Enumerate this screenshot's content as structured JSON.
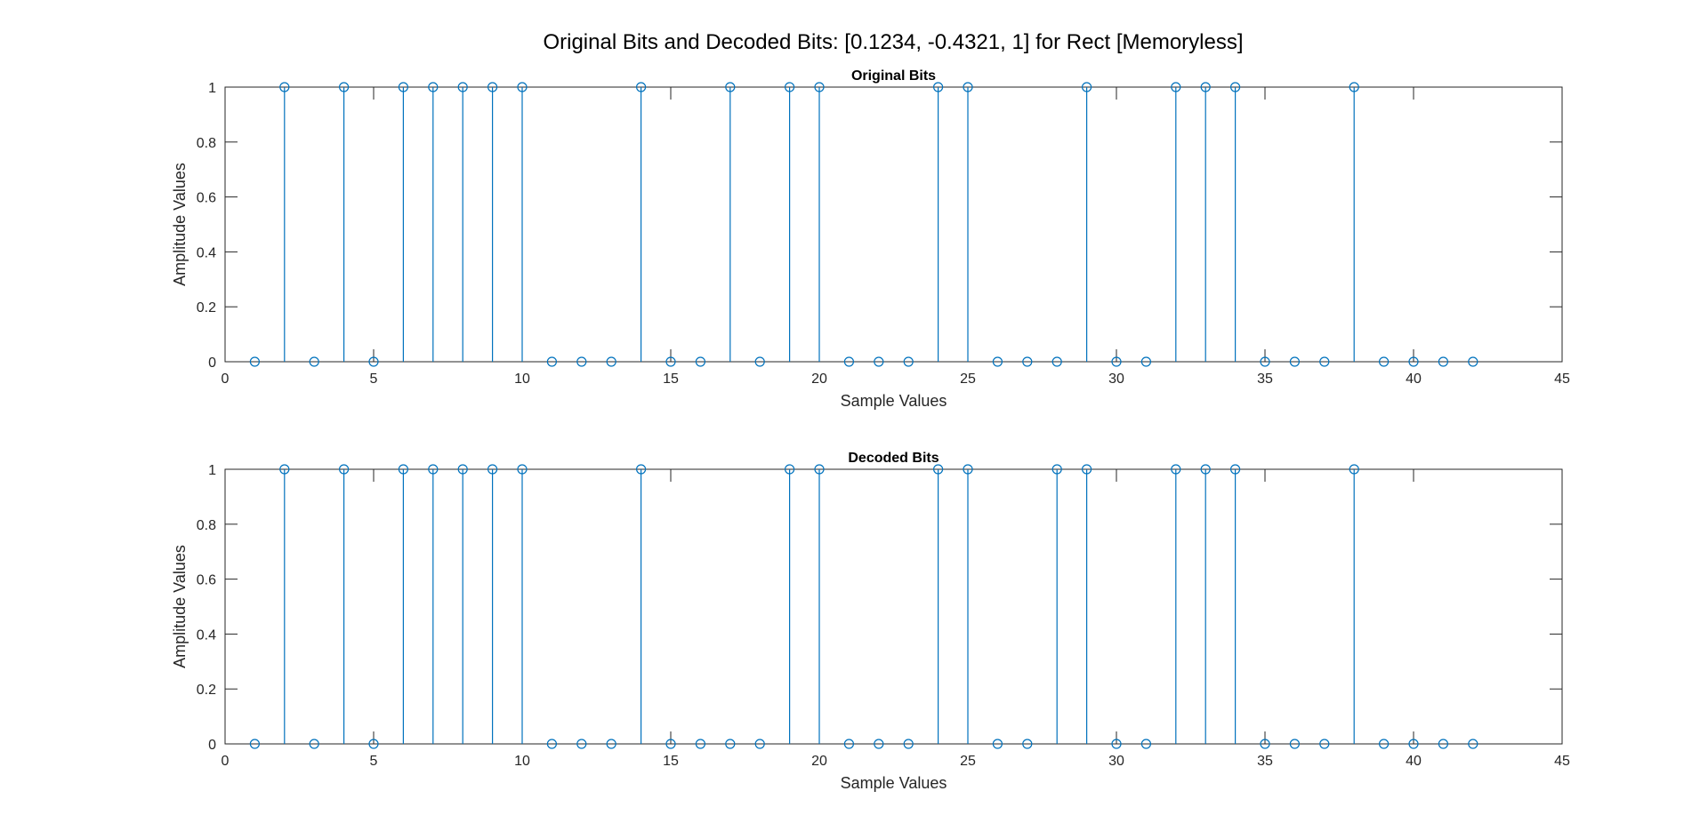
{
  "figure": {
    "title": "Original Bits and Decoded Bits: [0.1234, -0.4321, 1] for Rect [Memoryless]"
  },
  "chart_data": [
    {
      "type": "stem",
      "title": "Original Bits",
      "xlabel": "Sample Values",
      "ylabel": "Amplitude Values",
      "xlim": [
        0,
        45
      ],
      "ylim": [
        0,
        1
      ],
      "xticks": [
        "0",
        "5",
        "10",
        "15",
        "20",
        "25",
        "30",
        "35",
        "40",
        "45"
      ],
      "yticks": [
        "0",
        "0.2",
        "0.4",
        "0.6",
        "0.8",
        "1"
      ],
      "grid": false,
      "color": "#0072BD",
      "x": [
        1,
        2,
        3,
        4,
        5,
        6,
        7,
        8,
        9,
        10,
        11,
        12,
        13,
        14,
        15,
        16,
        17,
        18,
        19,
        20,
        21,
        22,
        23,
        24,
        25,
        26,
        27,
        28,
        29,
        30,
        31,
        32,
        33,
        34,
        35,
        36,
        37,
        38,
        39,
        40,
        41,
        42
      ],
      "values": [
        0,
        1,
        0,
        1,
        0,
        1,
        1,
        1,
        1,
        1,
        0,
        0,
        0,
        1,
        0,
        0,
        1,
        0,
        1,
        1,
        0,
        0,
        0,
        1,
        1,
        0,
        0,
        0,
        1,
        0,
        0,
        1,
        1,
        1,
        0,
        0,
        0,
        1,
        0,
        0,
        0,
        0
      ]
    },
    {
      "type": "stem",
      "title": "Decoded Bits",
      "xlabel": "Sample Values",
      "ylabel": "Amplitude Values",
      "xlim": [
        0,
        45
      ],
      "ylim": [
        0,
        1
      ],
      "xticks": [
        "0",
        "5",
        "10",
        "15",
        "20",
        "25",
        "30",
        "35",
        "40",
        "45"
      ],
      "yticks": [
        "0",
        "0.2",
        "0.4",
        "0.6",
        "0.8",
        "1"
      ],
      "grid": false,
      "color": "#0072BD",
      "x": [
        1,
        2,
        3,
        4,
        5,
        6,
        7,
        8,
        9,
        10,
        11,
        12,
        13,
        14,
        15,
        16,
        17,
        18,
        19,
        20,
        21,
        22,
        23,
        24,
        25,
        26,
        27,
        28,
        29,
        30,
        31,
        32,
        33,
        34,
        35,
        36,
        37,
        38,
        39,
        40,
        41,
        42
      ],
      "values": [
        0,
        1,
        0,
        1,
        0,
        1,
        1,
        1,
        1,
        1,
        0,
        0,
        0,
        1,
        0,
        0,
        0,
        0,
        1,
        1,
        0,
        0,
        0,
        1,
        1,
        0,
        0,
        1,
        1,
        0,
        0,
        1,
        1,
        1,
        0,
        0,
        0,
        1,
        0,
        0,
        0,
        0
      ]
    }
  ]
}
